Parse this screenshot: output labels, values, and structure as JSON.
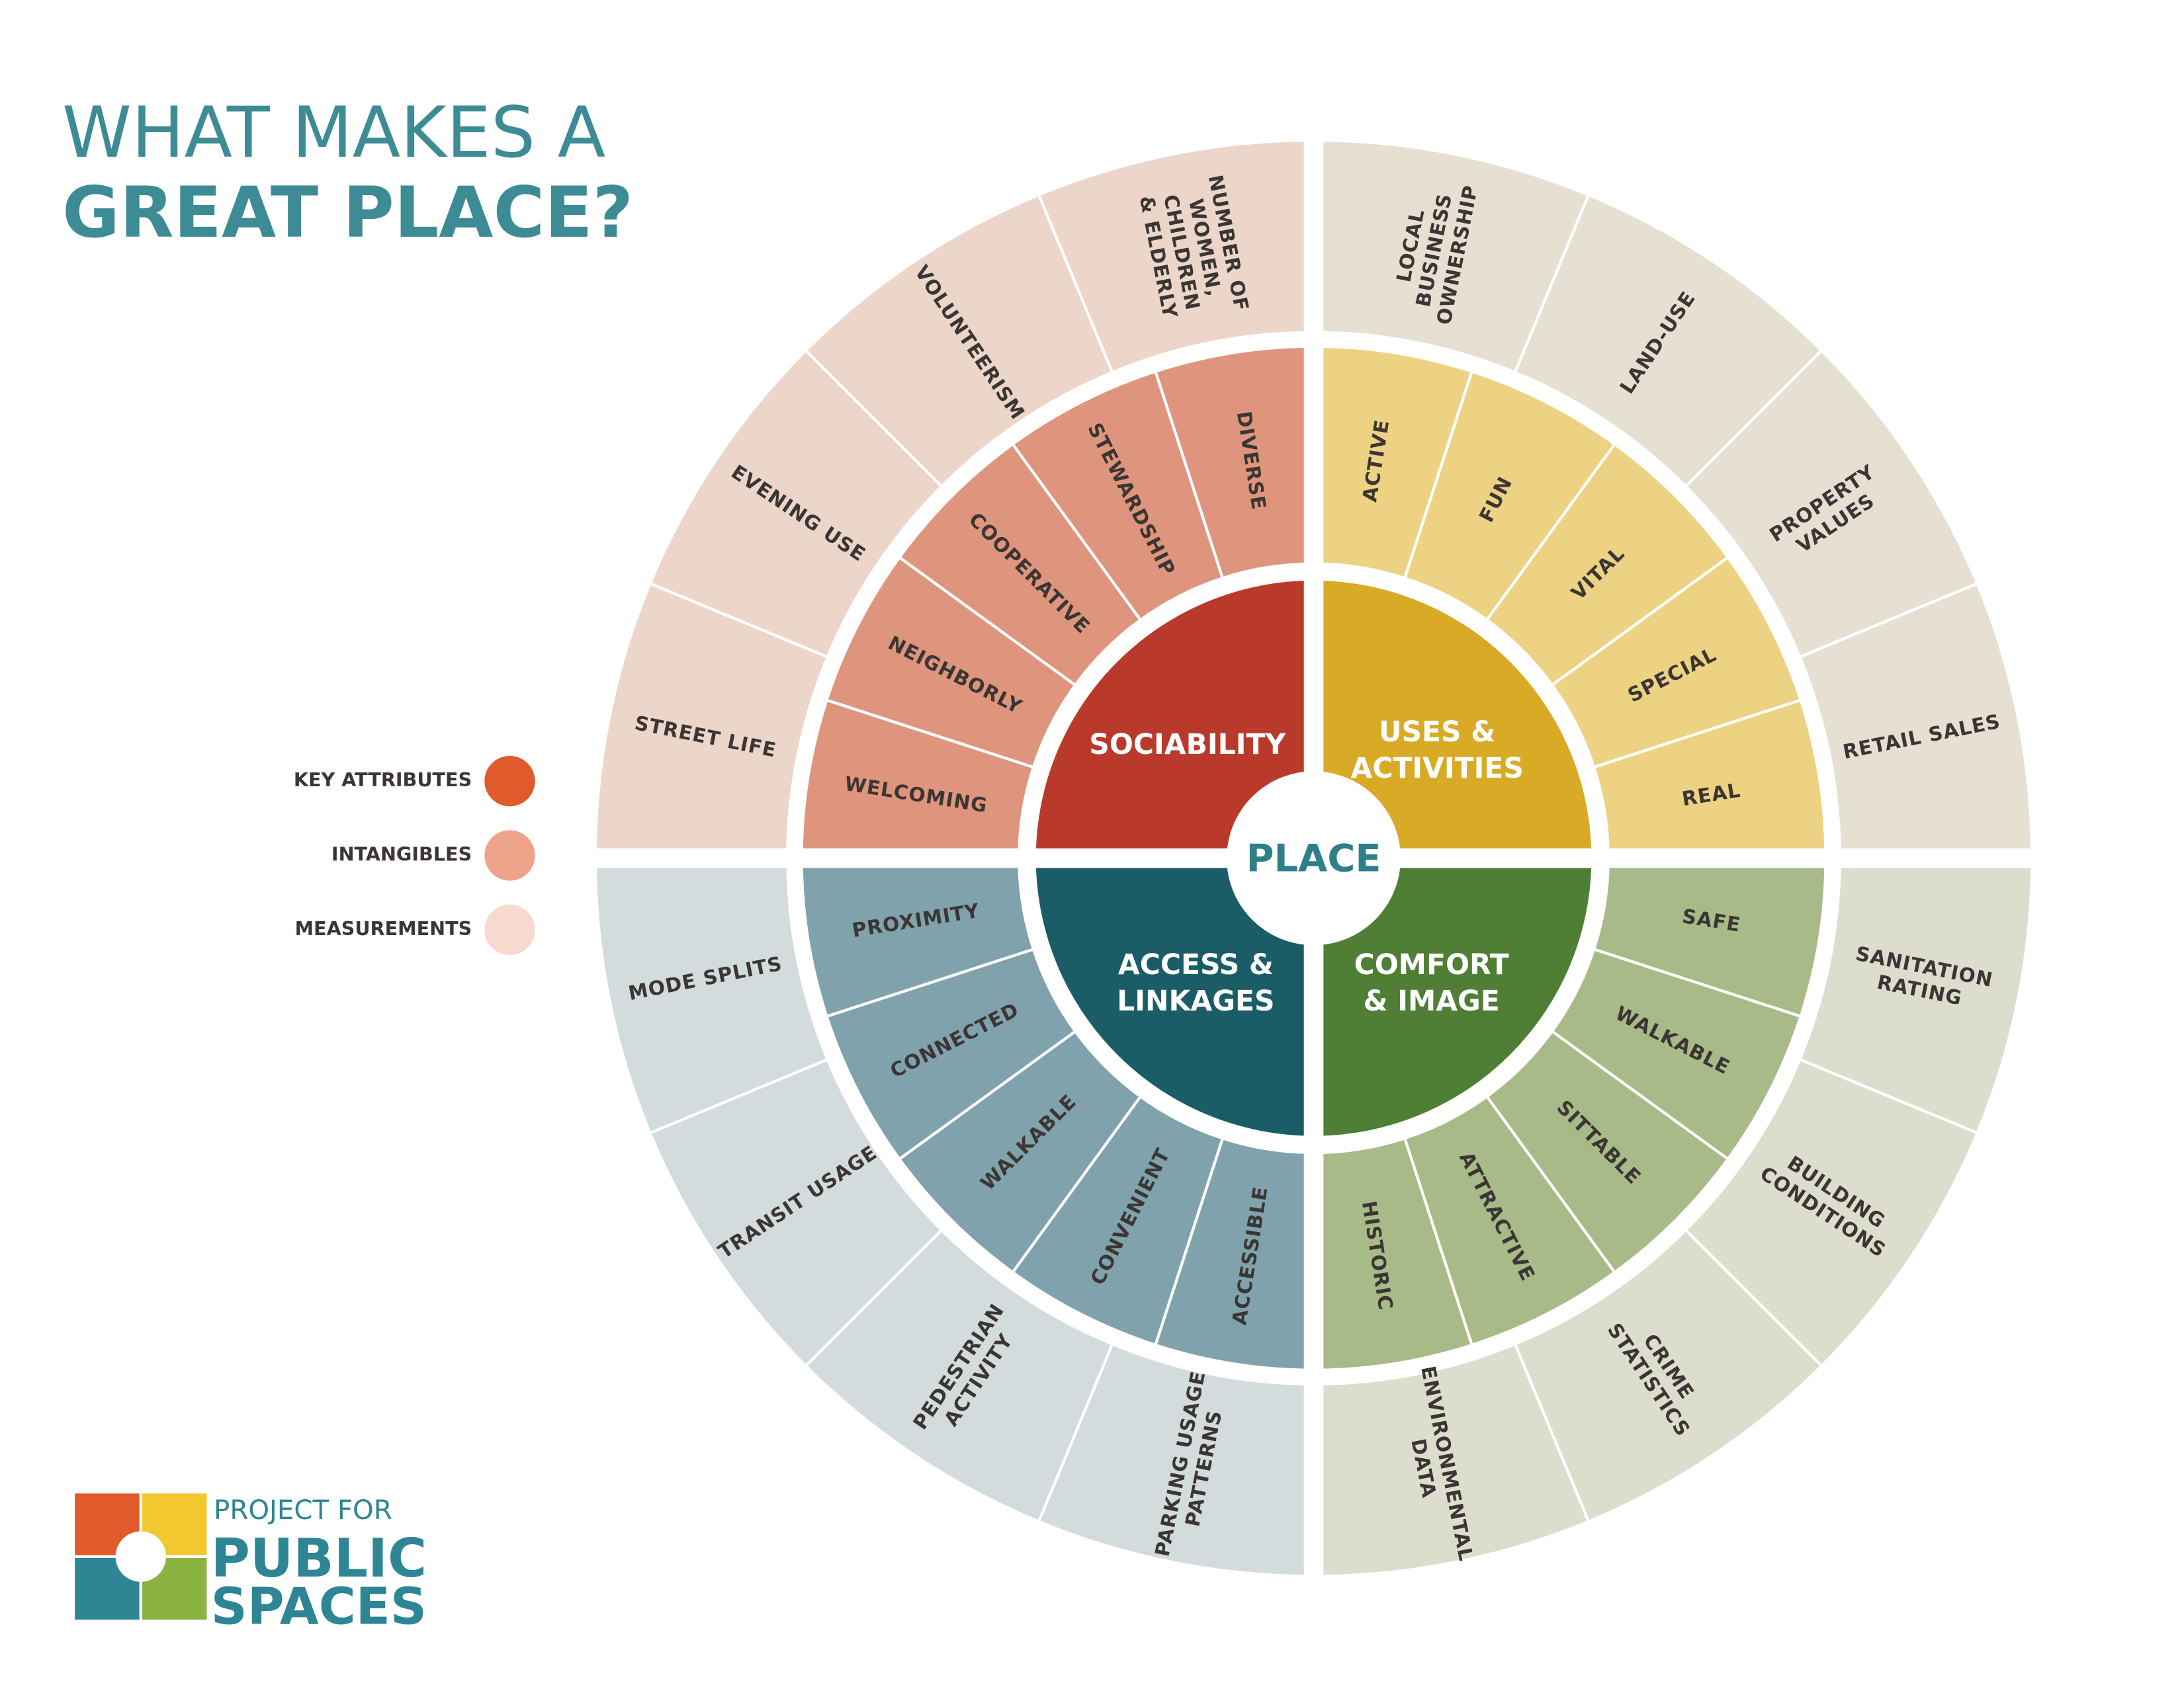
{
  "title": {
    "line1": "WHAT MAKES A",
    "line2": "GREAT PLACE?"
  },
  "legend": [
    "KEY ATTRIBUTES",
    "INTANGIBLES",
    "MEASUREMENTS"
  ],
  "center": "PLACE",
  "quadrants": [
    {
      "key_attribute": [
        "SOCIABILITY"
      ],
      "intangibles": [
        [
          "WELCOMING"
        ],
        [
          "NEIGHBORLY"
        ],
        [
          "COOPERATIVE"
        ],
        [
          "STEWARDSHIP"
        ],
        [
          "DIVERSE"
        ]
      ],
      "measurements": [
        [
          "STREET LIFE"
        ],
        [
          "EVENING USE"
        ],
        [
          "VOLUNTEERISM"
        ],
        [
          "NUMBER OF",
          "WOMEN,",
          "CHILDREN",
          "& ELDERLY"
        ]
      ]
    },
    {
      "key_attribute": [
        "USES &",
        "ACTIVITIES"
      ],
      "intangibles": [
        [
          "ACTIVE"
        ],
        [
          "FUN"
        ],
        [
          "VITAL"
        ],
        [
          "SPECIAL"
        ],
        [
          "REAL"
        ]
      ],
      "measurements": [
        [
          "LOCAL",
          "BUSINESS",
          "OWNERSHIP"
        ],
        [
          "LAND-USE"
        ],
        [
          "PROPERTY",
          "VALUES"
        ],
        [
          "RETAIL SALES"
        ]
      ]
    },
    {
      "key_attribute": [
        "COMFORT",
        "& IMAGE"
      ],
      "intangibles": [
        [
          "SAFE"
        ],
        [
          "WALKABLE"
        ],
        [
          "SITTABLE"
        ],
        [
          "ATTRACTIVE"
        ],
        [
          "HISTORIC"
        ]
      ],
      "measurements": [
        [
          "SANITATION",
          "RATING"
        ],
        [
          "BUILDING",
          "CONDITIONS"
        ],
        [
          "CRIME",
          "STATISTICS"
        ],
        [
          "ENVIRONMENTAL",
          "DATA"
        ]
      ]
    },
    {
      "key_attribute": [
        "ACCESS &",
        "LINKAGES"
      ],
      "intangibles": [
        [
          "ACCESSIBLE"
        ],
        [
          "CONVENIENT"
        ],
        [
          "WALKABLE"
        ],
        [
          "CONNECTED"
        ],
        [
          "PROXIMITY"
        ]
      ],
      "measurements": [
        [
          "PARKING USAGE",
          "PATTERNS"
        ],
        [
          "PEDESTRIAN",
          "ACTIVITY"
        ],
        [
          "TRANSIT USAGE"
        ],
        [
          "MODE SPLITS"
        ]
      ]
    }
  ],
  "logo": [
    "PROJECT FOR",
    "PUBLIC",
    "SPACES"
  ]
}
